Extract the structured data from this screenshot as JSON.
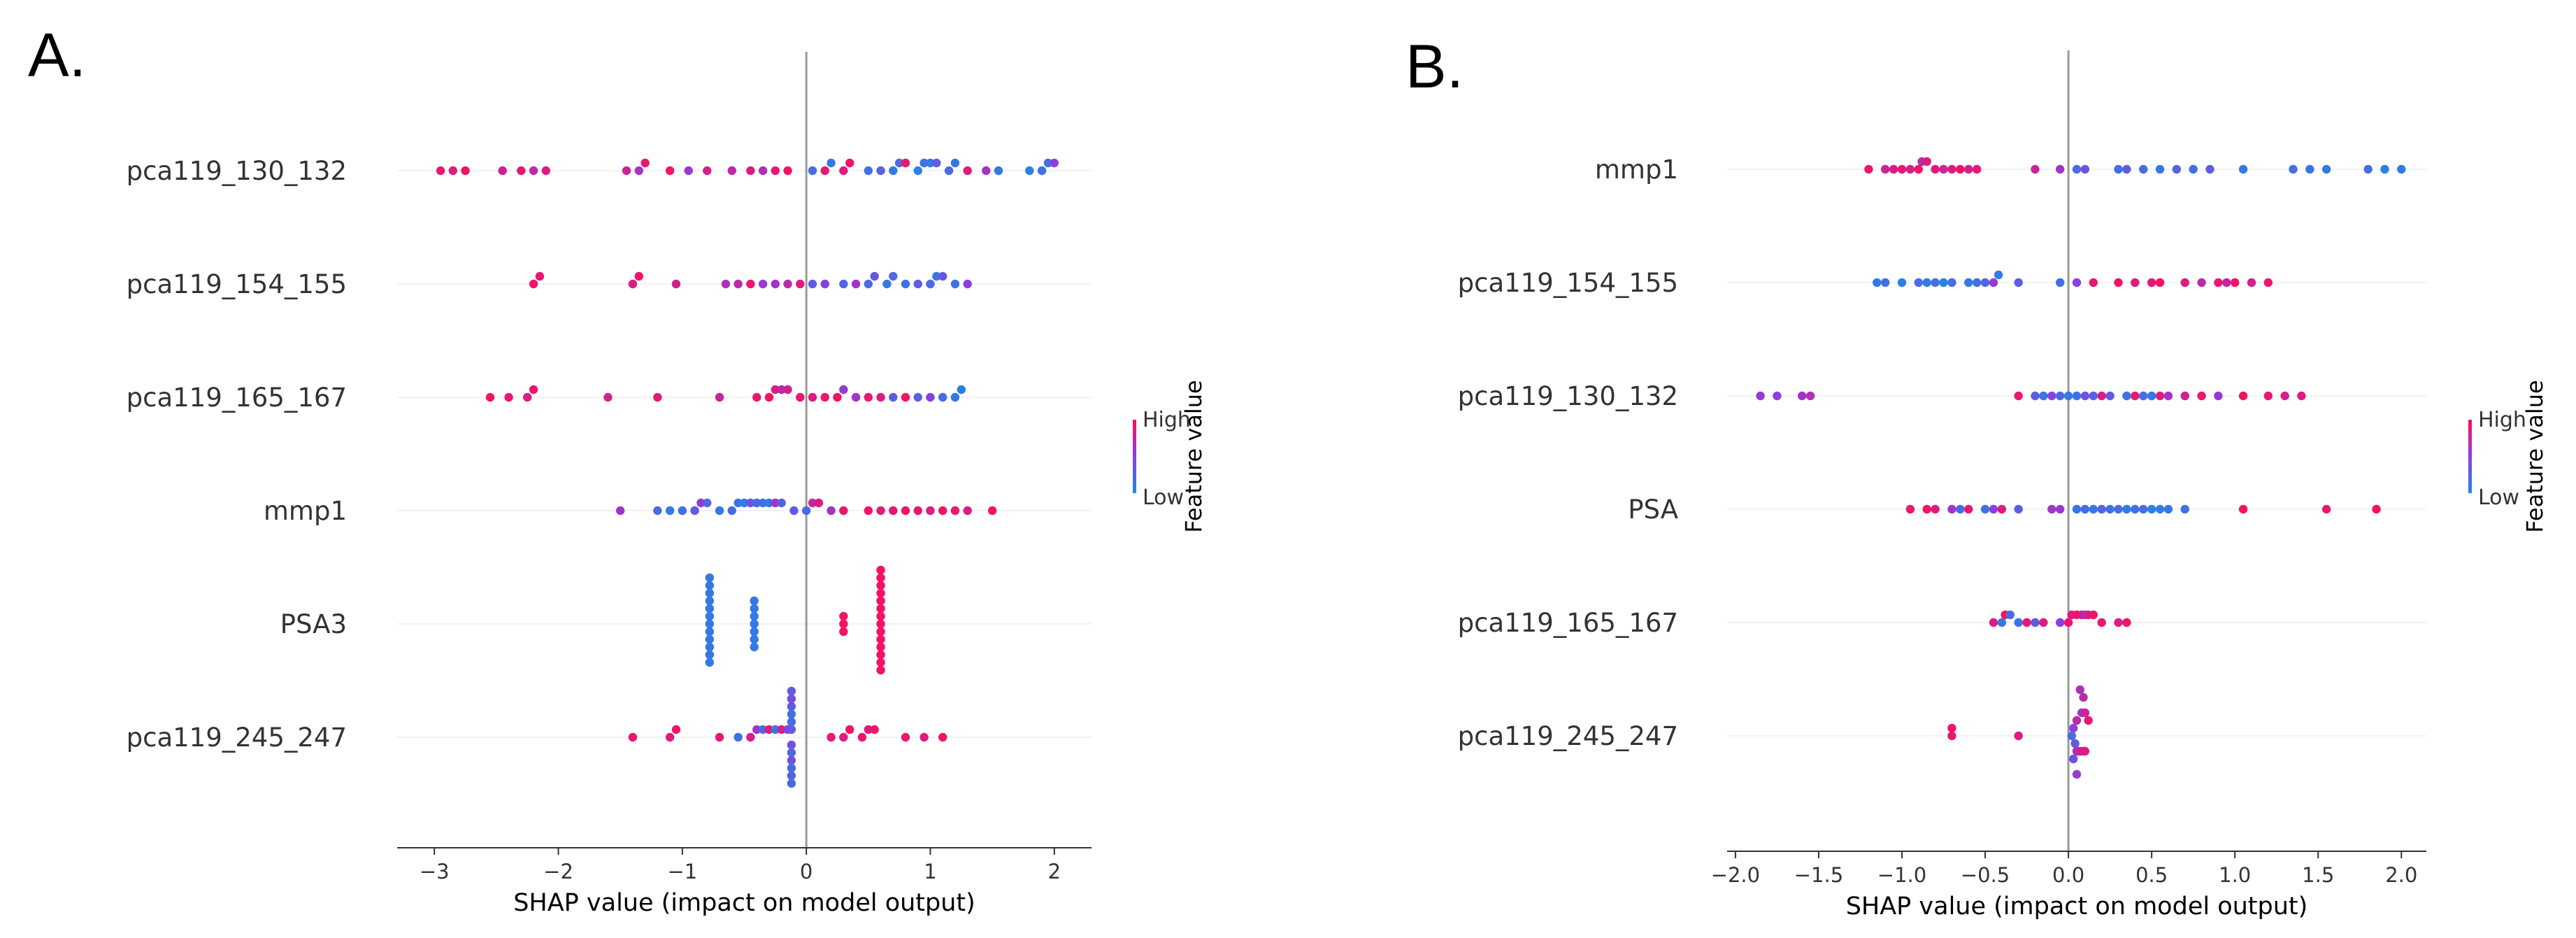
{
  "panels": [
    {
      "letter": "A."
    },
    {
      "letter": "B."
    }
  ],
  "chart_data": [
    {
      "type": "scatter",
      "subtype": "shap-beeswarm",
      "panel": "A.",
      "xlabel": "SHAP value (impact on model output)",
      "xlim": [
        -3.3,
        2.3
      ],
      "xticks": [
        -3,
        -2,
        -1,
        0,
        1,
        2
      ],
      "xtick_labels": [
        "−3",
        "−2",
        "−1",
        "0",
        "1",
        "2"
      ],
      "colorbar": {
        "title": "Feature value",
        "high_label": "High",
        "low_label": "Low",
        "high_color": "#ff0d57",
        "mid_color": "#8a3fe0",
        "low_color": "#1e88e5"
      },
      "features": [
        {
          "name": "pca119_130_132",
          "shap": [
            -2.95,
            -2.85,
            -2.75,
            -2.45,
            -2.3,
            -2.2,
            -2.1,
            -1.45,
            -1.35,
            -1.3,
            -1.1,
            -0.95,
            -0.8,
            -0.6,
            -0.45,
            -0.35,
            -0.25,
            -0.15,
            0.05,
            0.15,
            0.2,
            0.3,
            0.35,
            0.5,
            0.6,
            0.7,
            0.75,
            0.8,
            0.9,
            0.95,
            1.0,
            1.05,
            1.15,
            1.2,
            1.3,
            1.45,
            1.55,
            1.8,
            1.9,
            1.95,
            2.0
          ],
          "value": [
            0.9,
            0.85,
            0.95,
            0.8,
            0.9,
            0.7,
            0.85,
            0.75,
            0.6,
            0.9,
            0.95,
            0.55,
            0.8,
            0.7,
            0.85,
            0.65,
            0.9,
            0.95,
            0.2,
            0.9,
            0.1,
            0.85,
            0.95,
            0.15,
            0.25,
            0.1,
            0.2,
            0.9,
            0.05,
            0.15,
            0.1,
            0.3,
            0.2,
            0.1,
            0.85,
            0.6,
            0.1,
            0.05,
            0.15,
            0.2,
            0.5
          ]
        },
        {
          "name": "pca119_154_155",
          "shap": [
            -2.2,
            -2.15,
            -1.4,
            -1.35,
            -1.05,
            -0.65,
            -0.55,
            -0.45,
            -0.35,
            -0.25,
            -0.15,
            -0.05,
            0.05,
            0.15,
            0.3,
            0.4,
            0.5,
            0.55,
            0.65,
            0.7,
            0.8,
            0.9,
            1.0,
            1.05,
            1.1,
            1.2,
            1.3
          ],
          "value": [
            0.95,
            0.9,
            0.85,
            0.95,
            0.8,
            0.65,
            0.7,
            0.9,
            0.55,
            0.6,
            0.7,
            0.85,
            0.3,
            0.5,
            0.25,
            0.6,
            0.2,
            0.35,
            0.1,
            0.25,
            0.15,
            0.3,
            0.2,
            0.1,
            0.35,
            0.15,
            0.5
          ]
        },
        {
          "name": "pca119_165_167",
          "shap": [
            -2.55,
            -2.4,
            -2.25,
            -2.2,
            -1.6,
            -1.2,
            -0.7,
            -0.4,
            -0.3,
            -0.25,
            -0.2,
            -0.15,
            -0.05,
            0.05,
            0.15,
            0.25,
            0.3,
            0.4,
            0.5,
            0.6,
            0.7,
            0.8,
            0.9,
            1.0,
            1.1,
            1.2,
            1.25
          ],
          "value": [
            0.95,
            0.9,
            0.85,
            0.9,
            0.8,
            0.85,
            0.75,
            0.9,
            0.95,
            0.85,
            0.7,
            0.8,
            0.9,
            0.85,
            0.9,
            0.95,
            0.55,
            0.6,
            0.9,
            0.85,
            0.3,
            0.95,
            0.25,
            0.5,
            0.2,
            0.1,
            0.05
          ]
        },
        {
          "name": "mmp1",
          "shap": [
            -1.5,
            -1.2,
            -1.1,
            -1.0,
            -0.9,
            -0.85,
            -0.8,
            -0.7,
            -0.6,
            -0.55,
            -0.5,
            -0.45,
            -0.4,
            -0.35,
            -0.3,
            -0.25,
            -0.2,
            -0.1,
            0.0,
            0.05,
            0.1,
            0.2,
            0.3,
            0.5,
            0.6,
            0.7,
            0.8,
            0.9,
            1.0,
            1.1,
            1.2,
            1.3,
            1.5
          ],
          "value": [
            0.6,
            0.2,
            0.1,
            0.15,
            0.3,
            0.55,
            0.25,
            0.1,
            0.2,
            0.15,
            0.05,
            0.35,
            0.2,
            0.15,
            0.1,
            0.6,
            0.25,
            0.3,
            0.2,
            0.75,
            0.85,
            0.6,
            0.9,
            0.95,
            0.85,
            0.9,
            0.95,
            0.9,
            0.85,
            0.95,
            0.9,
            0.85,
            0.95
          ]
        },
        {
          "name": "PSA3",
          "shap": [
            -0.78,
            -0.78,
            -0.78,
            -0.78,
            -0.78,
            -0.78,
            -0.78,
            -0.78,
            -0.78,
            -0.78,
            -0.78,
            -0.78,
            -0.42,
            -0.42,
            -0.42,
            -0.42,
            -0.42,
            -0.42,
            -0.42,
            0.3,
            0.3,
            0.3,
            0.6,
            0.6,
            0.6,
            0.6,
            0.6,
            0.6,
            0.6,
            0.6,
            0.6,
            0.6,
            0.6,
            0.6,
            0.6,
            0.6
          ],
          "value": [
            0.1,
            0.1,
            0.1,
            0.1,
            0.1,
            0.1,
            0.1,
            0.1,
            0.1,
            0.1,
            0.1,
            0.1,
            0.1,
            0.1,
            0.1,
            0.1,
            0.1,
            0.1,
            0.1,
            0.95,
            0.95,
            0.95,
            0.95,
            0.95,
            0.95,
            0.95,
            0.95,
            0.95,
            0.95,
            0.95,
            0.95,
            0.95,
            0.95,
            0.95,
            0.95,
            0.95
          ]
        },
        {
          "name": "pca119_245_247",
          "shap": [
            -1.4,
            -1.1,
            -1.05,
            -0.7,
            -0.55,
            -0.45,
            -0.4,
            -0.35,
            -0.3,
            -0.25,
            -0.2,
            -0.15,
            -0.12,
            -0.12,
            -0.12,
            -0.12,
            -0.12,
            -0.12,
            -0.12,
            -0.12,
            -0.12,
            -0.12,
            -0.12,
            -0.12,
            0.2,
            0.3,
            0.35,
            0.45,
            0.5,
            0.55,
            0.8,
            0.95,
            1.1
          ],
          "value": [
            0.9,
            0.85,
            0.95,
            0.9,
            0.15,
            0.8,
            0.6,
            0.2,
            0.9,
            0.1,
            0.85,
            0.5,
            0.3,
            0.4,
            0.2,
            0.25,
            0.15,
            0.35,
            0.3,
            0.2,
            0.4,
            0.25,
            0.3,
            0.2,
            0.9,
            0.85,
            0.95,
            0.9,
            0.85,
            0.95,
            0.9,
            0.85,
            0.95
          ]
        }
      ]
    },
    {
      "type": "scatter",
      "subtype": "shap-beeswarm",
      "panel": "B.",
      "xlabel": "SHAP value (impact on model output)",
      "xlim": [
        -2.05,
        2.15
      ],
      "xticks": [
        -2.0,
        -1.5,
        -1.0,
        -0.5,
        0.0,
        0.5,
        1.0,
        1.5,
        2.0
      ],
      "xtick_labels": [
        "−2.0",
        "−1.5",
        "−1.0",
        "−0.5",
        "0.0",
        "0.5",
        "1.0",
        "1.5",
        "2.0"
      ],
      "colorbar": {
        "title": "Feature value",
        "high_label": "High",
        "low_label": "Low",
        "high_color": "#ff0d57",
        "mid_color": "#8a3fe0",
        "low_color": "#1e88e5"
      },
      "features": [
        {
          "name": "mmp1",
          "shap": [
            -1.2,
            -1.1,
            -1.05,
            -1.0,
            -0.95,
            -0.9,
            -0.88,
            -0.85,
            -0.8,
            -0.75,
            -0.7,
            -0.65,
            -0.6,
            -0.55,
            -0.2,
            -0.05,
            0.05,
            0.1,
            0.3,
            0.35,
            0.45,
            0.55,
            0.65,
            0.75,
            0.85,
            1.05,
            1.35,
            1.45,
            1.55,
            1.8,
            1.9,
            2.0
          ],
          "value": [
            0.9,
            0.75,
            0.85,
            0.9,
            0.8,
            0.95,
            0.7,
            0.85,
            0.9,
            0.75,
            0.85,
            0.95,
            0.8,
            0.9,
            0.75,
            0.6,
            0.2,
            0.35,
            0.15,
            0.3,
            0.2,
            0.1,
            0.25,
            0.15,
            0.3,
            0.1,
            0.2,
            0.15,
            0.1,
            0.2,
            0.05,
            0.1
          ]
        },
        {
          "name": "pca119_154_155",
          "shap": [
            -1.15,
            -1.1,
            -1.0,
            -0.9,
            -0.85,
            -0.8,
            -0.75,
            -0.7,
            -0.6,
            -0.55,
            -0.5,
            -0.45,
            -0.42,
            -0.3,
            -0.05,
            0.05,
            0.15,
            0.3,
            0.4,
            0.5,
            0.55,
            0.7,
            0.8,
            0.9,
            0.95,
            1.0,
            1.1,
            1.2
          ],
          "value": [
            0.1,
            0.15,
            0.05,
            0.2,
            0.1,
            0.15,
            0.05,
            0.2,
            0.1,
            0.15,
            0.25,
            0.55,
            0.1,
            0.3,
            0.2,
            0.5,
            0.9,
            0.95,
            0.85,
            0.9,
            0.95,
            0.85,
            0.7,
            0.9,
            0.75,
            0.95,
            0.8,
            0.9
          ]
        },
        {
          "name": "pca119_130_132",
          "shap": [
            -1.85,
            -1.75,
            -1.6,
            -1.55,
            -0.3,
            -0.2,
            -0.15,
            -0.1,
            -0.05,
            0.0,
            0.05,
            0.1,
            0.15,
            0.2,
            0.25,
            0.35,
            0.4,
            0.45,
            0.5,
            0.55,
            0.6,
            0.7,
            0.8,
            0.9,
            1.05,
            1.2,
            1.3,
            1.4
          ],
          "value": [
            0.55,
            0.5,
            0.6,
            0.65,
            0.9,
            0.3,
            0.15,
            0.5,
            0.2,
            0.1,
            0.15,
            0.4,
            0.25,
            0.85,
            0.3,
            0.15,
            0.9,
            0.2,
            0.1,
            0.85,
            0.6,
            0.8,
            0.9,
            0.55,
            0.95,
            0.9,
            0.8,
            0.85
          ]
        },
        {
          "name": "PSA",
          "shap": [
            -0.95,
            -0.85,
            -0.8,
            -0.7,
            -0.65,
            -0.6,
            -0.5,
            -0.45,
            -0.4,
            -0.3,
            -0.1,
            -0.05,
            0.05,
            0.1,
            0.15,
            0.2,
            0.25,
            0.3,
            0.35,
            0.4,
            0.45,
            0.5,
            0.55,
            0.6,
            0.7,
            1.05,
            1.55,
            1.85
          ],
          "value": [
            0.9,
            0.95,
            0.85,
            0.6,
            0.2,
            0.9,
            0.15,
            0.5,
            0.85,
            0.3,
            0.6,
            0.55,
            0.15,
            0.2,
            0.1,
            0.25,
            0.15,
            0.2,
            0.1,
            0.15,
            0.2,
            0.05,
            0.1,
            0.1,
            0.15,
            0.95,
            0.9,
            0.95
          ]
        },
        {
          "name": "pca119_165_167",
          "shap": [
            -0.45,
            -0.4,
            -0.38,
            -0.35,
            -0.3,
            -0.25,
            -0.2,
            -0.15,
            -0.05,
            0.0,
            0.02,
            0.05,
            0.08,
            0.1,
            0.12,
            0.15,
            0.2,
            0.3,
            0.35
          ],
          "value": [
            0.85,
            0.1,
            0.95,
            0.2,
            0.15,
            0.9,
            0.3,
            0.85,
            0.5,
            0.9,
            0.85,
            0.95,
            0.9,
            0.6,
            0.85,
            0.95,
            0.9,
            0.85,
            0.9
          ]
        },
        {
          "name": "pca119_245_247",
          "shap": [
            -0.7,
            -0.7,
            -0.3,
            0.02,
            0.03,
            0.04,
            0.05,
            0.05,
            0.06,
            0.07,
            0.08,
            0.08,
            0.09,
            0.1,
            0.1,
            0.12,
            0.03,
            0.05,
            0.07,
            0.09
          ],
          "value": [
            0.9,
            0.95,
            0.85,
            0.2,
            0.5,
            0.3,
            0.7,
            0.6,
            0.8,
            0.5,
            0.9,
            0.6,
            0.8,
            0.85,
            0.75,
            0.9,
            0.4,
            0.55,
            0.65,
            0.7
          ]
        }
      ]
    }
  ]
}
